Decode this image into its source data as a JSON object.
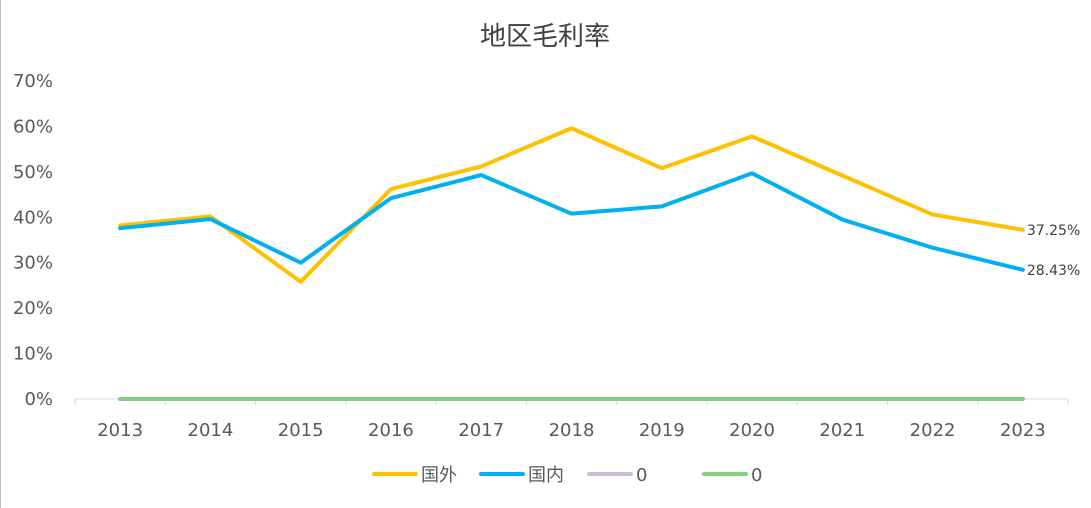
{
  "chart_data": {
    "type": "line",
    "title": "地区毛利率",
    "xlabel": "",
    "ylabel": "",
    "categories": [
      "2013",
      "2014",
      "2015",
      "2016",
      "2017",
      "2018",
      "2019",
      "2020",
      "2021",
      "2022",
      "2023"
    ],
    "ylim": [
      0,
      70
    ],
    "yticks": [
      "0%",
      "10%",
      "20%",
      "30%",
      "40%",
      "50%",
      "60%",
      "70%"
    ],
    "grid": false,
    "legend_position": "bottom",
    "series": [
      {
        "name": "国外",
        "color": "#FFC000",
        "values": [
          38.2,
          40.2,
          25.8,
          46.2,
          51.2,
          59.6,
          50.8,
          57.8,
          49.2,
          40.6,
          37.25
        ],
        "end_label": "37.25%"
      },
      {
        "name": "国内",
        "color": "#00B0F0",
        "values": [
          37.6,
          39.6,
          30.0,
          44.2,
          49.3,
          40.8,
          42.4,
          49.7,
          39.5,
          33.3,
          28.43
        ],
        "end_label": "28.43%"
      },
      {
        "name": "0",
        "color": "#CDB9DA",
        "values": [
          0,
          0,
          0,
          0,
          0,
          0,
          0,
          0,
          0,
          0,
          0
        ],
        "end_label": ""
      },
      {
        "name": "0",
        "color": "#7FD17F",
        "values": [
          0,
          0,
          0,
          0,
          0,
          0,
          0,
          0,
          0,
          0,
          0
        ],
        "end_label": ""
      }
    ]
  }
}
